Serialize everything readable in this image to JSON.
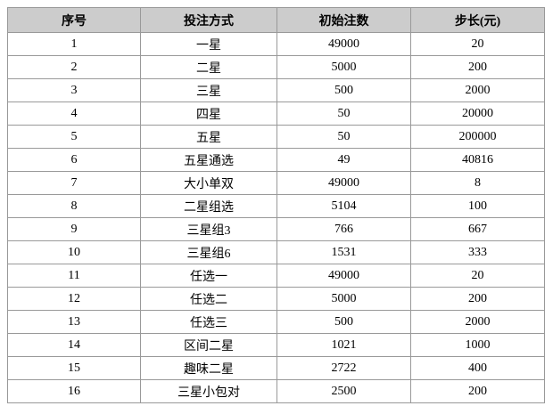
{
  "table": {
    "headers": [
      "序号",
      "投注方式",
      "初始注数",
      "步长(元)"
    ],
    "rows": [
      [
        "1",
        "一星",
        "49000",
        "20"
      ],
      [
        "2",
        "二星",
        "5000",
        "200"
      ],
      [
        "3",
        "三星",
        "500",
        "2000"
      ],
      [
        "4",
        "四星",
        "50",
        "20000"
      ],
      [
        "5",
        "五星",
        "50",
        "200000"
      ],
      [
        "6",
        "五星通选",
        "49",
        "40816"
      ],
      [
        "7",
        "大小单双",
        "49000",
        "8"
      ],
      [
        "8",
        "二星组选",
        "5104",
        "100"
      ],
      [
        "9",
        "三星组3",
        "766",
        "667"
      ],
      [
        "10",
        "三星组6",
        "1531",
        "333"
      ],
      [
        "11",
        "任选一",
        "49000",
        "20"
      ],
      [
        "12",
        "任选二",
        "5000",
        "200"
      ],
      [
        "13",
        "任选三",
        "500",
        "2000"
      ],
      [
        "14",
        "区间二星",
        "1021",
        "1000"
      ],
      [
        "15",
        "趣味二星",
        "2722",
        "400"
      ],
      [
        "16",
        "三星小包对",
        "2500",
        "200"
      ]
    ],
    "colors": {
      "header_bg": "#cccccc",
      "border": "#999999",
      "text": "#000000",
      "row_bg": "#ffffff"
    }
  }
}
